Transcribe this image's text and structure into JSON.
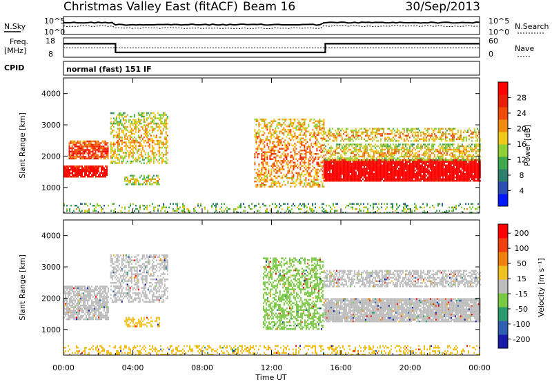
{
  "header": {
    "station": "Christmas Valley East (fitACF)",
    "beam": "Beam 16",
    "date": "30/Sep/2013"
  },
  "nsky_panel": {
    "left_label": "N.Sky",
    "right_label": "N.Search",
    "left_ticks": [
      "10^5",
      "10^0"
    ],
    "right_ticks": [
      "10^5",
      "10^0"
    ]
  },
  "freq_panel": {
    "left_label_1": "Freq.",
    "left_label_2": "[MHz]",
    "right_label": "Nave",
    "left_ticks": [
      "18",
      "8"
    ],
    "right_ticks": [
      "60",
      "0"
    ],
    "freq_steps": [
      [
        0,
        15
      ],
      [
        3.0,
        15
      ],
      [
        3.0,
        10.5
      ],
      [
        15.1,
        10.5
      ],
      [
        15.1,
        15
      ],
      [
        24,
        15
      ]
    ],
    "nave_steps": [
      [
        0,
        15
      ],
      [
        24,
        15
      ]
    ],
    "ylim": [
      8,
      18
    ]
  },
  "cpid": {
    "label": "CPID",
    "value": "normal (fast) 151 IF"
  },
  "x_axis": {
    "label": "Time UT",
    "ticks": [
      "00:00",
      "04:00",
      "08:00",
      "12:00",
      "16:00",
      "20:00",
      "00:00"
    ],
    "xlim": [
      0,
      24
    ]
  },
  "chart_data": [
    {
      "type": "heatmap",
      "name": "power",
      "ylabel": "Slant Range [km]",
      "yticks": [
        "1000",
        "2000",
        "3000",
        "4000"
      ],
      "ylim": [
        180,
        4500
      ],
      "xlim": [
        0,
        24
      ],
      "colorbar": {
        "label": "Power [dB]",
        "ticks": [
          "4",
          "8",
          "12",
          "16",
          "20",
          "24",
          "28"
        ],
        "colors": [
          "#0018ff",
          "#2c4db2",
          "#2f7f6e",
          "#3fa84d",
          "#8fcf34",
          "#f0c818",
          "#f08a10",
          "#f04a0a",
          "#e81e06",
          "#ff0000"
        ]
      },
      "features": [
        {
          "t0": 0.0,
          "t1": 2.5,
          "r0": 1350,
          "r1": 1700,
          "level": 0.85,
          "density": 0.9
        },
        {
          "t0": 0.3,
          "t1": 2.6,
          "r0": 1900,
          "r1": 2500,
          "level": 0.7,
          "density": 0.8
        },
        {
          "t0": 2.7,
          "t1": 6.0,
          "r0": 1800,
          "r1": 3400,
          "level": 0.45,
          "density": 0.5
        },
        {
          "t0": 3.5,
          "t1": 5.5,
          "r0": 1100,
          "r1": 1400,
          "level": 0.4,
          "density": 0.55
        },
        {
          "t0": 11.0,
          "t1": 15.0,
          "r0": 1000,
          "r1": 3200,
          "level": 0.55,
          "density": 0.45
        },
        {
          "t0": 15.0,
          "t1": 24.0,
          "r0": 1200,
          "r1": 1900,
          "level": 0.95,
          "density": 0.95
        },
        {
          "t0": 15.0,
          "t1": 24.0,
          "r0": 1900,
          "r1": 2400,
          "level": 0.45,
          "density": 0.6
        },
        {
          "t0": 15.0,
          "t1": 24.0,
          "r0": 2500,
          "r1": 2900,
          "level": 0.5,
          "density": 0.5
        },
        {
          "t0": 0.0,
          "t1": 24.0,
          "r0": 180,
          "r1": 500,
          "level": 0.3,
          "density": 0.25
        }
      ]
    },
    {
      "type": "heatmap",
      "name": "velocity",
      "ylabel": "Slant Range [km]",
      "yticks": [
        "1000",
        "2000",
        "3000",
        "4000"
      ],
      "ylim": [
        180,
        4500
      ],
      "xlim": [
        0,
        24
      ],
      "colorbar": {
        "label": "Velocity [m s⁻¹]",
        "ticks": [
          "200",
          "100",
          "50",
          "15",
          "-15",
          "-50",
          "-100",
          "-200"
        ],
        "colors": [
          "#1a1aa8",
          "#2f5fb3",
          "#2b9a6a",
          "#7ac943",
          "#bcbcbc",
          "#f0c020",
          "#f08010",
          "#f04010",
          "#ff0000"
        ]
      },
      "features": [
        {
          "t0": 0.0,
          "t1": 2.6,
          "r0": 1350,
          "r1": 2400,
          "vel": "gray",
          "density": 0.75
        },
        {
          "t0": 2.7,
          "t1": 6.0,
          "r0": 1900,
          "r1": 3400,
          "vel": "gray",
          "density": 0.5
        },
        {
          "t0": 3.5,
          "t1": 5.5,
          "r0": 1100,
          "r1": 1400,
          "vel": "orange",
          "density": 0.5
        },
        {
          "t0": 11.5,
          "t1": 15.0,
          "r0": 1000,
          "r1": 3300,
          "vel": "green",
          "density": 0.5
        },
        {
          "t0": 15.0,
          "t1": 24.0,
          "r0": 1250,
          "r1": 2000,
          "vel": "gray",
          "density": 0.92
        },
        {
          "t0": 15.0,
          "t1": 24.0,
          "r0": 2400,
          "r1": 2900,
          "vel": "gray",
          "density": 0.6
        },
        {
          "t0": 0.0,
          "t1": 24.0,
          "r0": 180,
          "r1": 500,
          "vel": "orange",
          "density": 0.3
        }
      ]
    }
  ]
}
